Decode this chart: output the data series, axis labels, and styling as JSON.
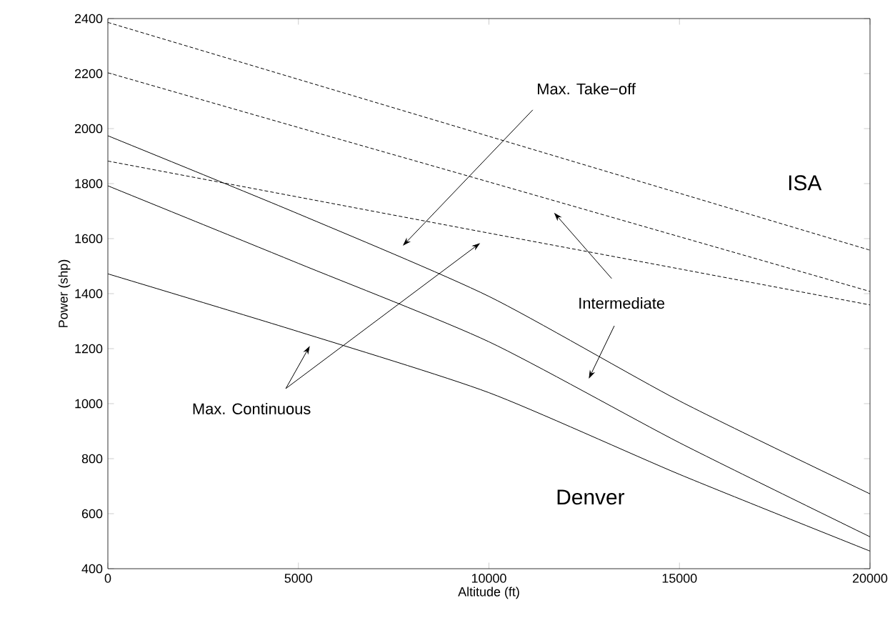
{
  "chart_data": {
    "type": "line",
    "xlabel": "Altitude (ft)",
    "ylabel": "Power (shp)",
    "x": [
      0,
      5000,
      10000,
      15000,
      20000
    ],
    "series": [
      {
        "color": "#000000",
        "line_style": "dashed",
        "values": [
          2386,
          2179,
          1972,
          1765,
          1558
        ]
      },
      {
        "color": "#000000",
        "line_style": "dashed",
        "values": [
          2203,
          2004,
          1806,
          1607,
          1408
        ]
      },
      {
        "color": "#000000",
        "line_style": "dashed",
        "values": [
          1882,
          1751,
          1620,
          1490,
          1359
        ]
      },
      {
        "color": "#000000",
        "line_style": "solid",
        "values": [
          1974,
          1690,
          1390,
          1010,
          672
        ]
      },
      {
        "color": "#000000",
        "line_style": "solid",
        "values": [
          1792,
          1510,
          1225,
          858,
          516
        ]
      },
      {
        "color": "#000000",
        "line_style": "solid",
        "values": [
          1472,
          1262,
          1040,
          743,
          464
        ]
      }
    ],
    "xlim": [
      0,
      20000
    ],
    "ylim": [
      400,
      2400
    ],
    "xticks": [
      0,
      5000,
      10000,
      15000,
      20000
    ],
    "yticks": [
      400,
      600,
      800,
      1000,
      1200,
      1400,
      1600,
      1800,
      2000,
      2200,
      2400
    ],
    "grid": false,
    "marker": "none",
    "annotations": [
      "Max. Take−off",
      "ISA",
      "Intermediate",
      "Max. Continuous",
      "Denver"
    ]
  }
}
